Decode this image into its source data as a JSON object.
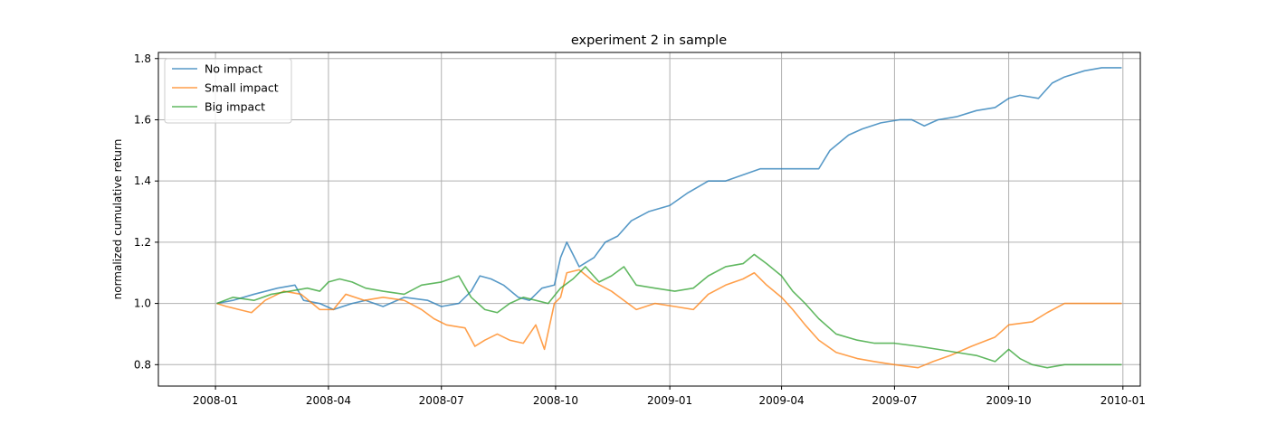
{
  "chart_data": {
    "type": "line",
    "title": "experiment 2 in sample",
    "xlabel": "",
    "ylabel": "normalized cumulative return",
    "x_ticks": [
      "2008-01",
      "2008-04",
      "2008-07",
      "2008-10",
      "2009-01",
      "2009-04",
      "2009-07",
      "2009-10",
      "2010-01"
    ],
    "y_ticks": [
      "0.8",
      "1.0",
      "1.2",
      "1.4",
      "1.6",
      "1.8"
    ],
    "xlim": [
      "2007-11-16",
      "2010-01-15"
    ],
    "ylim": [
      0.73,
      1.82
    ],
    "grid": true,
    "legend_position": "top-left",
    "series": [
      {
        "name": "No impact",
        "color": "#1f77b4",
        "points": [
          [
            "2008-01-02",
            1.0
          ],
          [
            "2008-01-15",
            1.01
          ],
          [
            "2008-02-01",
            1.03
          ],
          [
            "2008-02-20",
            1.05
          ],
          [
            "2008-03-05",
            1.06
          ],
          [
            "2008-03-12",
            1.01
          ],
          [
            "2008-03-25",
            1.0
          ],
          [
            "2008-04-05",
            0.98
          ],
          [
            "2008-04-20",
            1.0
          ],
          [
            "2008-05-01",
            1.01
          ],
          [
            "2008-05-15",
            0.99
          ],
          [
            "2008-06-01",
            1.02
          ],
          [
            "2008-06-20",
            1.01
          ],
          [
            "2008-07-01",
            0.99
          ],
          [
            "2008-07-15",
            1.0
          ],
          [
            "2008-07-25",
            1.04
          ],
          [
            "2008-08-01",
            1.09
          ],
          [
            "2008-08-10",
            1.08
          ],
          [
            "2008-08-20",
            1.06
          ],
          [
            "2008-09-01",
            1.02
          ],
          [
            "2008-09-10",
            1.01
          ],
          [
            "2008-09-20",
            1.05
          ],
          [
            "2008-09-30",
            1.06
          ],
          [
            "2008-10-05",
            1.15
          ],
          [
            "2008-10-10",
            1.2
          ],
          [
            "2008-10-20",
            1.12
          ],
          [
            "2008-11-01",
            1.15
          ],
          [
            "2008-11-10",
            1.2
          ],
          [
            "2008-11-20",
            1.22
          ],
          [
            "2008-12-01",
            1.27
          ],
          [
            "2008-12-15",
            1.3
          ],
          [
            "2009-01-01",
            1.32
          ],
          [
            "2009-01-15",
            1.36
          ],
          [
            "2009-02-01",
            1.4
          ],
          [
            "2009-02-15",
            1.4
          ],
          [
            "2009-03-01",
            1.42
          ],
          [
            "2009-03-15",
            1.44
          ],
          [
            "2009-04-01",
            1.44
          ],
          [
            "2009-04-15",
            1.44
          ],
          [
            "2009-05-01",
            1.44
          ],
          [
            "2009-05-10",
            1.5
          ],
          [
            "2009-05-25",
            1.55
          ],
          [
            "2009-06-05",
            1.57
          ],
          [
            "2009-06-20",
            1.59
          ],
          [
            "2009-07-05",
            1.6
          ],
          [
            "2009-07-15",
            1.6
          ],
          [
            "2009-07-25",
            1.58
          ],
          [
            "2009-08-05",
            1.6
          ],
          [
            "2009-08-20",
            1.61
          ],
          [
            "2009-09-05",
            1.63
          ],
          [
            "2009-09-20",
            1.64
          ],
          [
            "2009-10-01",
            1.67
          ],
          [
            "2009-10-10",
            1.68
          ],
          [
            "2009-10-25",
            1.67
          ],
          [
            "2009-11-05",
            1.72
          ],
          [
            "2009-11-15",
            1.74
          ],
          [
            "2009-12-01",
            1.76
          ],
          [
            "2009-12-15",
            1.77
          ],
          [
            "2009-12-31",
            1.77
          ]
        ]
      },
      {
        "name": "Small impact",
        "color": "#ff7f0e",
        "points": [
          [
            "2008-01-02",
            1.0
          ],
          [
            "2008-01-10",
            0.99
          ],
          [
            "2008-01-20",
            0.98
          ],
          [
            "2008-01-30",
            0.97
          ],
          [
            "2008-02-10",
            1.01
          ],
          [
            "2008-02-25",
            1.04
          ],
          [
            "2008-03-10",
            1.03
          ],
          [
            "2008-03-25",
            0.98
          ],
          [
            "2008-04-05",
            0.98
          ],
          [
            "2008-04-15",
            1.03
          ],
          [
            "2008-04-30",
            1.01
          ],
          [
            "2008-05-15",
            1.02
          ],
          [
            "2008-06-01",
            1.01
          ],
          [
            "2008-06-15",
            0.98
          ],
          [
            "2008-06-25",
            0.95
          ],
          [
            "2008-07-05",
            0.93
          ],
          [
            "2008-07-20",
            0.92
          ],
          [
            "2008-07-28",
            0.86
          ],
          [
            "2008-08-05",
            0.88
          ],
          [
            "2008-08-15",
            0.9
          ],
          [
            "2008-08-25",
            0.88
          ],
          [
            "2008-09-05",
            0.87
          ],
          [
            "2008-09-15",
            0.93
          ],
          [
            "2008-09-22",
            0.85
          ],
          [
            "2008-09-30",
            1.0
          ],
          [
            "2008-10-05",
            1.02
          ],
          [
            "2008-10-10",
            1.1
          ],
          [
            "2008-10-20",
            1.11
          ],
          [
            "2008-11-01",
            1.07
          ],
          [
            "2008-11-15",
            1.04
          ],
          [
            "2008-11-25",
            1.01
          ],
          [
            "2008-12-05",
            0.98
          ],
          [
            "2008-12-20",
            1.0
          ],
          [
            "2009-01-05",
            0.99
          ],
          [
            "2009-01-20",
            0.98
          ],
          [
            "2009-02-01",
            1.03
          ],
          [
            "2009-02-15",
            1.06
          ],
          [
            "2009-03-01",
            1.08
          ],
          [
            "2009-03-10",
            1.1
          ],
          [
            "2009-03-20",
            1.06
          ],
          [
            "2009-04-01",
            1.02
          ],
          [
            "2009-04-10",
            0.98
          ],
          [
            "2009-04-20",
            0.93
          ],
          [
            "2009-05-01",
            0.88
          ],
          [
            "2009-05-15",
            0.84
          ],
          [
            "2009-06-01",
            0.82
          ],
          [
            "2009-06-15",
            0.81
          ],
          [
            "2009-07-01",
            0.8
          ],
          [
            "2009-07-20",
            0.79
          ],
          [
            "2009-08-01",
            0.81
          ],
          [
            "2009-08-15",
            0.83
          ],
          [
            "2009-09-01",
            0.86
          ],
          [
            "2009-09-20",
            0.89
          ],
          [
            "2009-10-01",
            0.93
          ],
          [
            "2009-10-20",
            0.94
          ],
          [
            "2009-11-01",
            0.97
          ],
          [
            "2009-11-15",
            1.0
          ],
          [
            "2009-12-01",
            1.0
          ],
          [
            "2009-12-31",
            1.0
          ]
        ]
      },
      {
        "name": "Big impact",
        "color": "#2ca02c",
        "points": [
          [
            "2008-01-02",
            1.0
          ],
          [
            "2008-01-15",
            1.02
          ],
          [
            "2008-02-01",
            1.01
          ],
          [
            "2008-02-15",
            1.03
          ],
          [
            "2008-03-01",
            1.04
          ],
          [
            "2008-03-15",
            1.05
          ],
          [
            "2008-03-25",
            1.04
          ],
          [
            "2008-04-01",
            1.07
          ],
          [
            "2008-04-10",
            1.08
          ],
          [
            "2008-04-20",
            1.07
          ],
          [
            "2008-05-01",
            1.05
          ],
          [
            "2008-05-15",
            1.04
          ],
          [
            "2008-06-01",
            1.03
          ],
          [
            "2008-06-15",
            1.06
          ],
          [
            "2008-07-01",
            1.07
          ],
          [
            "2008-07-15",
            1.09
          ],
          [
            "2008-07-25",
            1.02
          ],
          [
            "2008-08-05",
            0.98
          ],
          [
            "2008-08-15",
            0.97
          ],
          [
            "2008-08-25",
            1.0
          ],
          [
            "2008-09-05",
            1.02
          ],
          [
            "2008-09-15",
            1.01
          ],
          [
            "2008-09-25",
            1.0
          ],
          [
            "2008-10-05",
            1.05
          ],
          [
            "2008-10-15",
            1.08
          ],
          [
            "2008-10-25",
            1.12
          ],
          [
            "2008-11-05",
            1.07
          ],
          [
            "2008-11-15",
            1.09
          ],
          [
            "2008-11-25",
            1.12
          ],
          [
            "2008-12-05",
            1.06
          ],
          [
            "2008-12-20",
            1.05
          ],
          [
            "2009-01-05",
            1.04
          ],
          [
            "2009-01-20",
            1.05
          ],
          [
            "2009-02-01",
            1.09
          ],
          [
            "2009-02-15",
            1.12
          ],
          [
            "2009-03-01",
            1.13
          ],
          [
            "2009-03-10",
            1.16
          ],
          [
            "2009-03-20",
            1.13
          ],
          [
            "2009-04-01",
            1.09
          ],
          [
            "2009-04-10",
            1.04
          ],
          [
            "2009-04-20",
            1.0
          ],
          [
            "2009-05-01",
            0.95
          ],
          [
            "2009-05-15",
            0.9
          ],
          [
            "2009-06-01",
            0.88
          ],
          [
            "2009-06-15",
            0.87
          ],
          [
            "2009-07-01",
            0.87
          ],
          [
            "2009-07-20",
            0.86
          ],
          [
            "2009-08-05",
            0.85
          ],
          [
            "2009-08-20",
            0.84
          ],
          [
            "2009-09-05",
            0.83
          ],
          [
            "2009-09-20",
            0.81
          ],
          [
            "2009-10-01",
            0.85
          ],
          [
            "2009-10-10",
            0.82
          ],
          [
            "2009-10-20",
            0.8
          ],
          [
            "2009-11-01",
            0.79
          ],
          [
            "2009-11-15",
            0.8
          ],
          [
            "2009-12-01",
            0.8
          ],
          [
            "2009-12-15",
            0.8
          ],
          [
            "2009-12-31",
            0.8
          ]
        ]
      }
    ]
  }
}
